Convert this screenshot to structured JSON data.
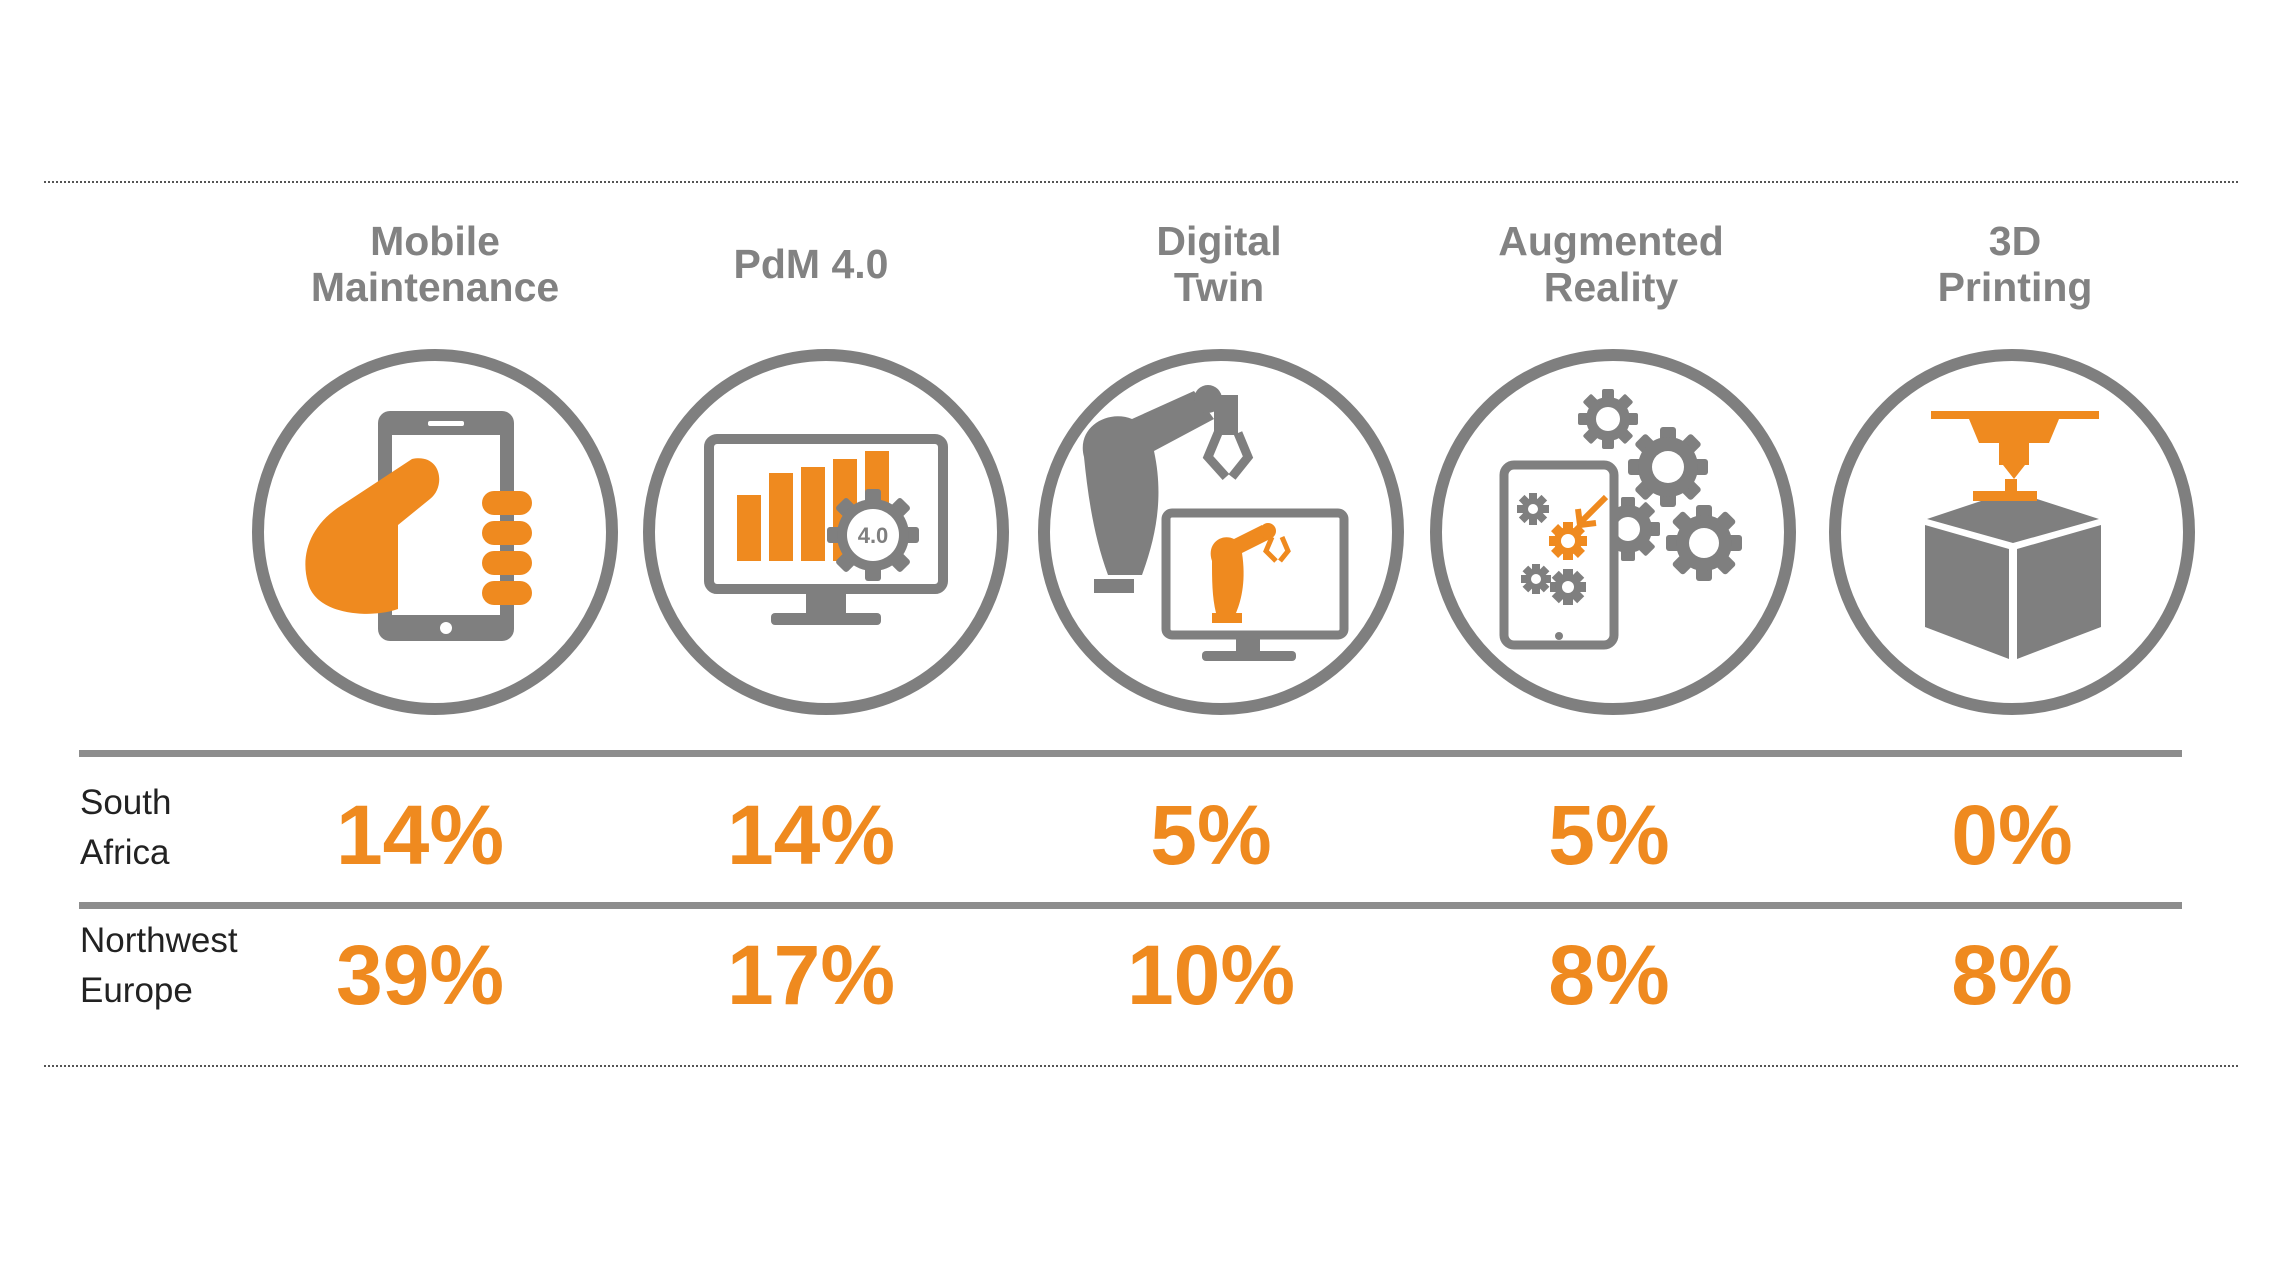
{
  "colors": {
    "orange": "#ef8a1f",
    "gray": "#7f7f7f",
    "text": "#222222"
  },
  "columns": [
    {
      "title": "Mobile\nMaintenance",
      "icon": "mobile-phone-hand-icon"
    },
    {
      "title": "PdM 4.0",
      "icon": "monitor-bar-chart-gear-icon"
    },
    {
      "title": "Digital\nTwin",
      "icon": "robot-arm-monitor-icon"
    },
    {
      "title": "Augmented\nReality",
      "icon": "tablet-gears-icon"
    },
    {
      "title": "3D\nPrinting",
      "icon": "3d-printer-cube-icon"
    }
  ],
  "rows": [
    {
      "region": "South\nAfrica",
      "values": [
        "14%",
        "14%",
        "5%",
        "5%",
        "0%"
      ]
    },
    {
      "region": "Northwest\nEurope",
      "values": [
        "39%",
        "17%",
        "10%",
        "8%",
        "8%"
      ]
    }
  ]
}
